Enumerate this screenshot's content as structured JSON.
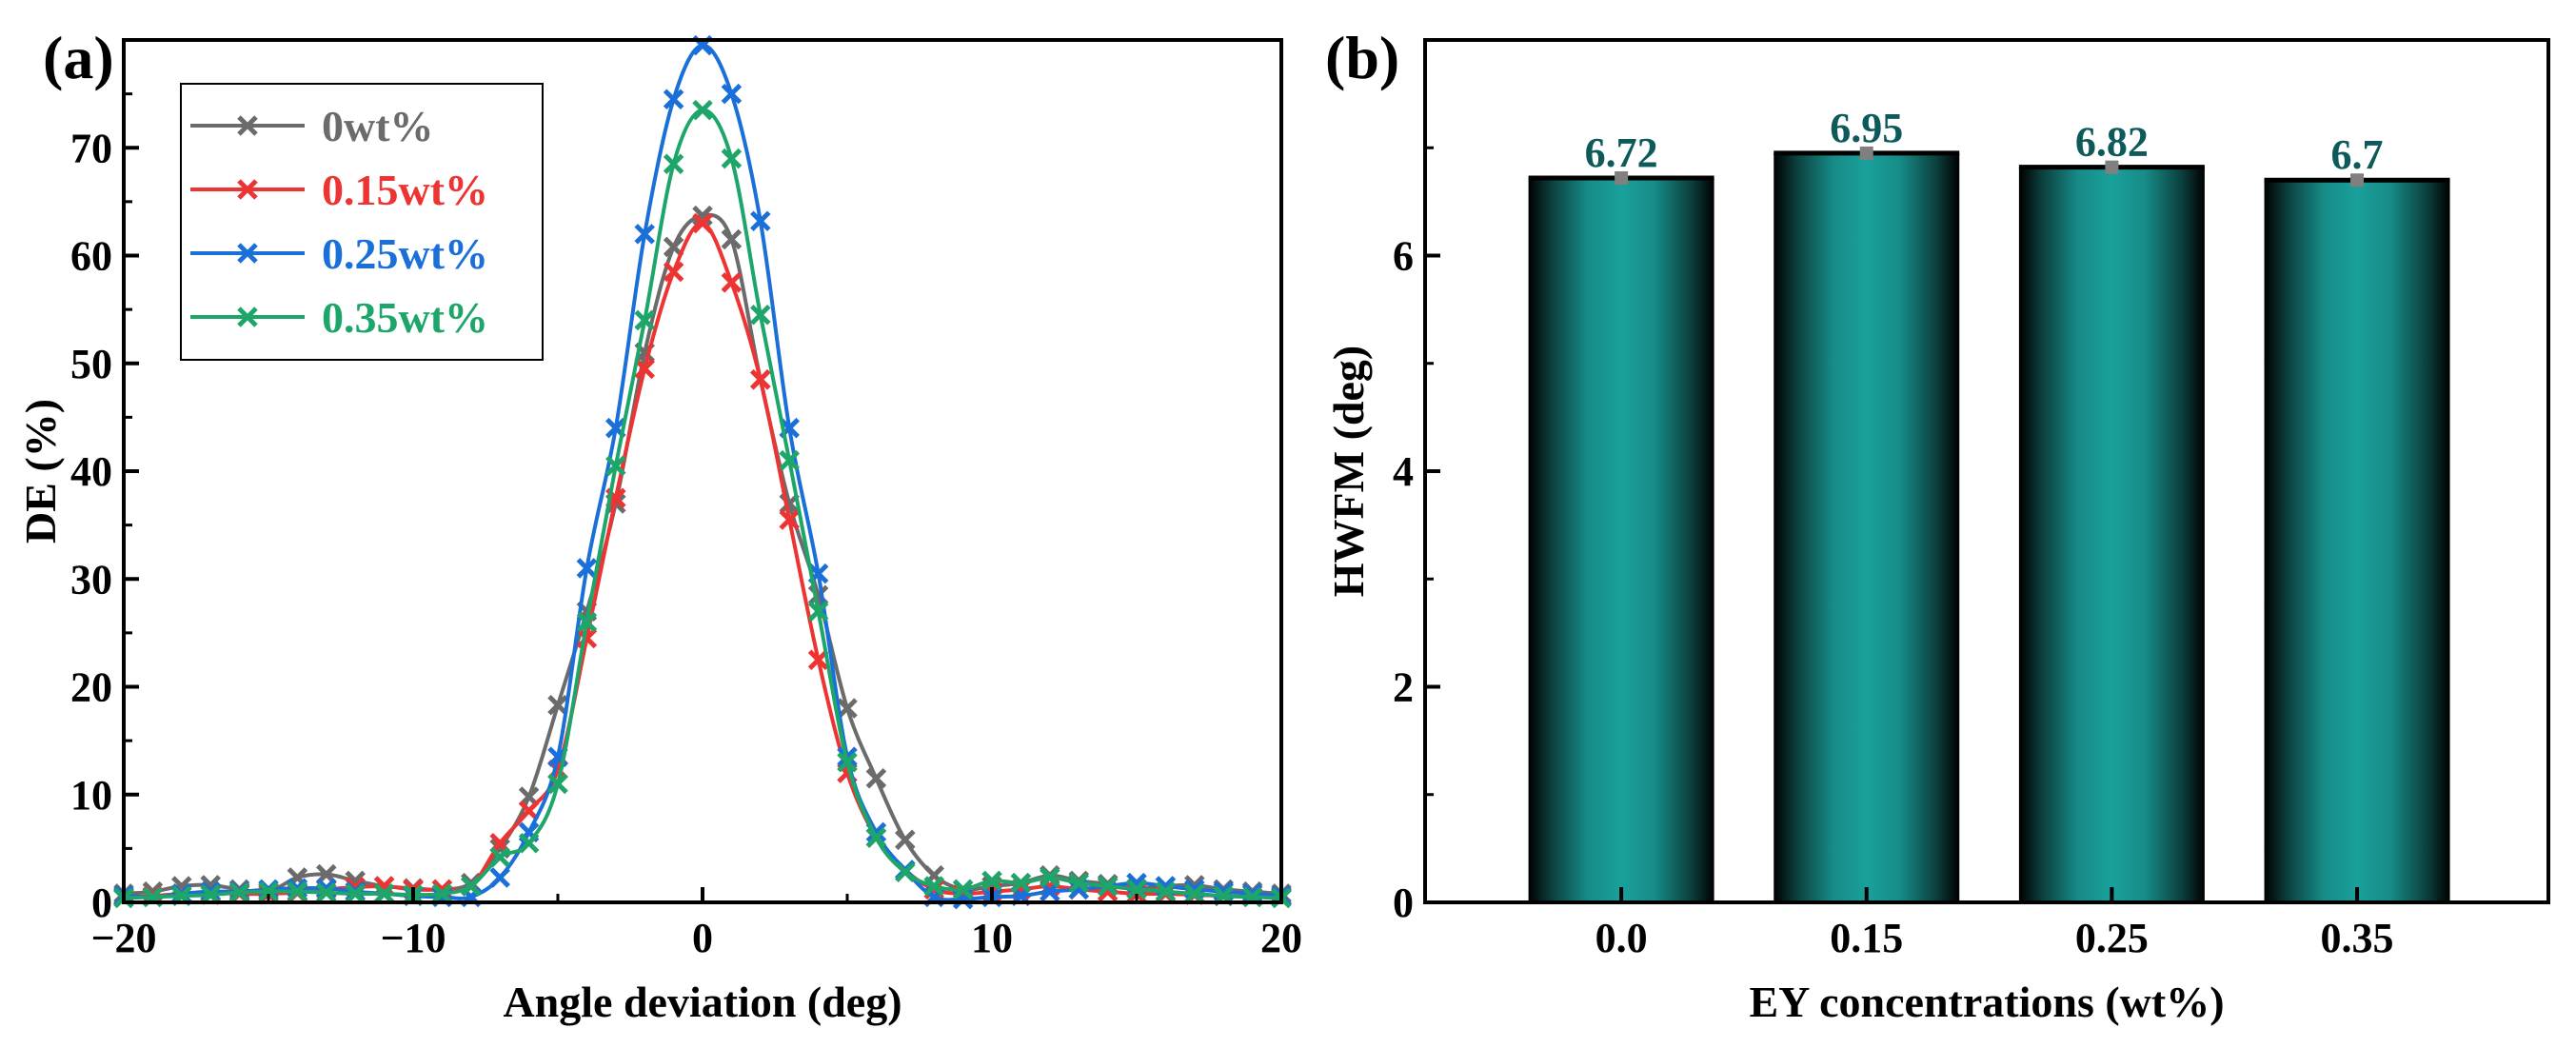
{
  "chart_data": [
    {
      "panel": "(a)",
      "type": "line",
      "title": "",
      "xlabel": "Angle deviation (deg)",
      "ylabel": "DE (%)",
      "xlim": [
        -20,
        20
      ],
      "ylim": [
        0,
        80
      ],
      "xticks": [
        -20,
        -10,
        0,
        10,
        20
      ],
      "yticks": [
        0,
        10,
        20,
        30,
        40,
        50,
        60,
        70
      ],
      "legend_position": "top-left",
      "x": [
        -20,
        -19,
        -18,
        -17,
        -16,
        -15,
        -14,
        -13,
        -12,
        -11,
        -10,
        -9,
        -8,
        -7,
        -6,
        -5,
        -4,
        -3,
        -2,
        -1,
        0,
        1,
        2,
        3,
        4,
        5,
        6,
        7,
        8,
        9,
        10,
        11,
        12,
        13,
        14,
        15,
        16,
        17,
        18,
        19,
        20
      ],
      "series": [
        {
          "name": "0wt%",
          "color": "#6b6b6b",
          "marker": "x",
          "values": [
            0.8,
            1,
            1.5,
            1.6,
            1.2,
            1,
            2.3,
            2.6,
            2,
            1.5,
            1.3,
            1.2,
            1.8,
            5,
            9.8,
            18.3,
            27,
            37,
            51,
            60.8,
            63.7,
            61.5,
            48.5,
            37,
            28.5,
            18,
            11.5,
            5.8,
            2.5,
            1.2,
            1.5,
            1.8,
            2.5,
            2,
            1.7,
            1.3,
            1.5,
            1.6,
            1.2,
            1,
            0.8
          ]
        },
        {
          "name": "0.15wt%",
          "color": "#ee3333",
          "marker": "x",
          "values": [
            0.5,
            0.6,
            0.8,
            0.9,
            0.8,
            0.8,
            0.9,
            1.2,
            1.4,
            1.5,
            1.2,
            1.2,
            1.5,
            5.5,
            8.5,
            12.3,
            24.5,
            37.5,
            49.5,
            58.5,
            63,
            57.5,
            48.5,
            35.5,
            22.5,
            12,
            6,
            3,
            1.2,
            0.8,
            1,
            1.2,
            1.5,
            1.2,
            1,
            0.8,
            0.8,
            0.7,
            0.6,
            0.5,
            0.5
          ]
        },
        {
          "name": "0.25wt%",
          "color": "#1a6fd9",
          "marker": "x",
          "values": [
            0.6,
            0.5,
            0.8,
            1,
            1,
            1.2,
            1.3,
            1.3,
            1,
            0.8,
            0.6,
            0.5,
            0.5,
            2.3,
            6.5,
            13.5,
            31,
            44,
            62,
            74.5,
            79.5,
            75,
            63.2,
            44,
            30.5,
            13.5,
            6.5,
            3,
            0.5,
            0.3,
            0.5,
            0.6,
            1,
            1.2,
            1.5,
            1.8,
            1.5,
            1.2,
            1,
            0.8,
            0.6
          ]
        },
        {
          "name": "0.35wt%",
          "color": "#1ea66a",
          "marker": "x",
          "values": [
            0.4,
            0.5,
            0.6,
            0.7,
            0.9,
            1,
            1,
            0.9,
            0.8,
            0.8,
            0.7,
            0.8,
            1.5,
            4.2,
            5.5,
            11,
            26,
            40.5,
            54,
            68.5,
            73.5,
            69,
            54.5,
            41,
            27,
            13,
            6,
            2.8,
            1.5,
            1.2,
            2,
            1.8,
            2.3,
            1.8,
            1.5,
            1.2,
            1,
            0.8,
            0.6,
            0.5,
            0.4
          ]
        }
      ]
    },
    {
      "panel": "(b)",
      "type": "bar",
      "title": "",
      "xlabel": "EY concentrations (wt%)",
      "ylabel": "HWFM (deg)",
      "ylim": [
        0,
        8
      ],
      "yticks": [
        0,
        2,
        4,
        6
      ],
      "categories": [
        "0.0",
        "0.15",
        "0.25",
        "0.35"
      ],
      "values": [
        6.72,
        6.95,
        6.82,
        6.7
      ],
      "value_labels": [
        "6.72",
        "6.95",
        "6.82",
        "6.7"
      ],
      "errors": [
        0.05,
        0.05,
        0.05,
        0.05
      ],
      "bar_color": "#178b87",
      "label_color": "#0e5a5a"
    }
  ]
}
